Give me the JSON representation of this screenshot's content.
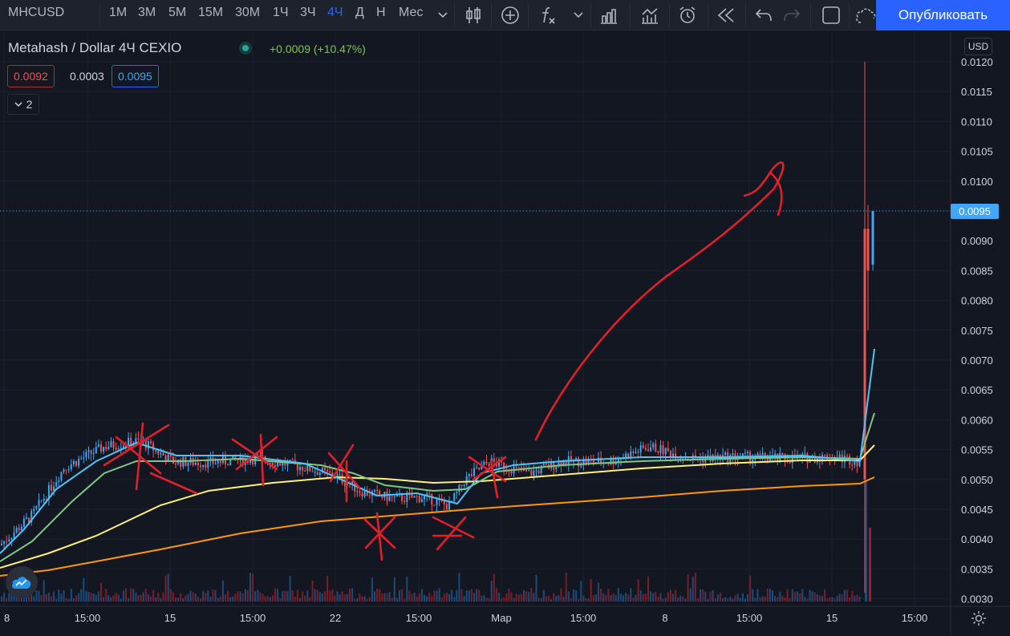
{
  "toolbar": {
    "symbol": "MHCUSD",
    "intervals": [
      "1М",
      "3М",
      "5М",
      "15М",
      "30М",
      "1Ч",
      "3Ч",
      "4Ч",
      "Д",
      "Н",
      "Мес"
    ],
    "active_interval": "4Ч",
    "publish_label": "Опубликовать",
    "icons": [
      "chevron-down-icon",
      "candles-icon",
      "plus-circle-icon",
      "indicators-icon",
      "chevron-down-icon",
      "templates-icon",
      "compare-icon",
      "alert-icon",
      "replay-icon",
      "undo-icon",
      "redo-icon",
      "layout-icon",
      "snapshot-icon"
    ]
  },
  "legend": {
    "title": "Metahash / Dollar  4Ч  CEXIO",
    "change": "+0.0009 (+10.47%)",
    "values": [
      "0.0092",
      "0.0003",
      "0.0095"
    ],
    "collapsed_count": "2"
  },
  "price_axis": {
    "currency": "USD",
    "ticks": [
      "0.0120",
      "0.0115",
      "0.0110",
      "0.0105",
      "0.0100",
      "0.0095",
      "0.0090",
      "0.0085",
      "0.0080",
      "0.0075",
      "0.0070",
      "0.0065",
      "0.0060",
      "0.0055",
      "0.0050",
      "0.0045",
      "0.0040",
      "0.0035",
      "0.0030"
    ],
    "current_price": "0.0095"
  },
  "time_axis": {
    "ticks": [
      "8",
      "15:00",
      "15",
      "15:00",
      "22",
      "15:00",
      "Мар",
      "15:00",
      "8",
      "15:00",
      "15",
      "15:00"
    ]
  },
  "colors": {
    "background": "#131722",
    "up": "#42a5f5",
    "down": "#ef5350",
    "ma_fast": "#4fc3f7",
    "ma_mid": "#81c784",
    "ma_slow": "#fff176",
    "ma_long": "#ff9800",
    "annotation": "#e0202a"
  }
}
